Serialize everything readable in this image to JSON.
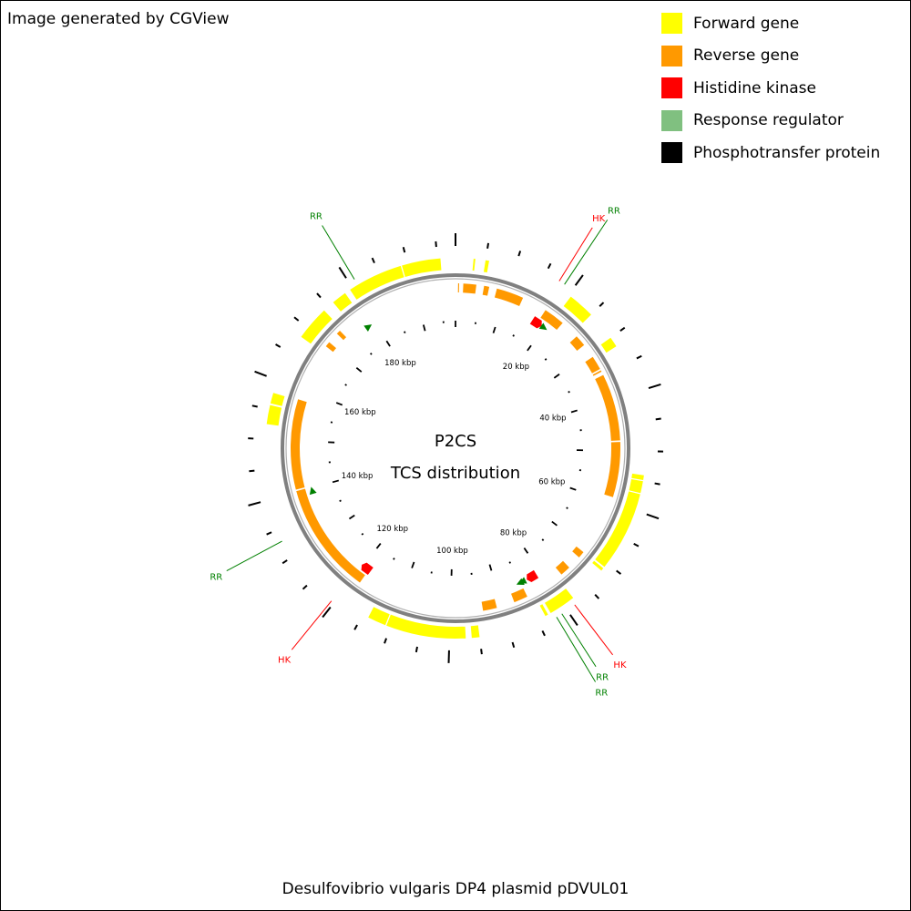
{
  "credit": "Image generated by CGView",
  "caption": "Desulfovibrio vulgaris DP4 plasmid pDVUL01",
  "center_title": "P2CS",
  "center_subtitle": "TCS distribution",
  "legend": [
    {
      "label": "Forward gene",
      "color": "#ffff00"
    },
    {
      "label": "Reverse gene",
      "color": "#ff9900"
    },
    {
      "label": "Histidine kinase",
      "color": "#ff0000"
    },
    {
      "label": "Response regulator",
      "color": "#80c080"
    },
    {
      "label": "Phosphotransfer protein",
      "color": "#000000"
    }
  ],
  "colors": {
    "forward": "#ffff00",
    "reverse": "#ff9900",
    "backbone": "#808080",
    "hk": "#ff0000",
    "rr": "#008000",
    "hk_label": "#ff0000",
    "rr_label": "#008000"
  },
  "genome": {
    "length_kbp": 198,
    "scale_labels": [
      "20 kbp",
      "40 kbp",
      "60 kbp",
      "80 kbp",
      "100 kbp",
      "120 kbp",
      "140 kbp",
      "160 kbp",
      "180 kbp"
    ],
    "forward_genes_kbp": [
      [
        3,
        3.3
      ],
      [
        5,
        5.6
      ],
      [
        20.5,
        25
      ],
      [
        30,
        31.7
      ],
      [
        54,
        54.8
      ],
      [
        55,
        57
      ],
      [
        57.2,
        70.7
      ],
      [
        71,
        71.5
      ],
      [
        78,
        82.5
      ],
      [
        83,
        83.5
      ],
      [
        95,
        96.3
      ],
      [
        97.3,
        110.7
      ],
      [
        110.9,
        114
      ],
      [
        152.5,
        155.7
      ],
      [
        156,
        157.8
      ],
      [
        168.2,
        174
      ],
      [
        176,
        178.5
      ],
      [
        179.5,
        188.8
      ],
      [
        189,
        195.5
      ]
    ],
    "reverse_genes_kbp": [
      [
        0.5,
        0.7
      ],
      [
        1.5,
        4
      ],
      [
        5.5,
        6.5
      ],
      [
        8,
        13.3
      ],
      [
        18.2,
        22.3
      ],
      [
        26,
        28.2
      ],
      [
        31,
        33.7
      ],
      [
        34,
        34.3
      ],
      [
        35,
        48
      ],
      [
        48.3,
        59
      ],
      [
        71,
        72.3
      ],
      [
        75,
        77
      ],
      [
        84.8,
        87.5
      ],
      [
        91,
        93.7
      ],
      [
        118.5,
        140.2
      ],
      [
        140.5,
        158
      ],
      [
        169.5,
        170.5
      ],
      [
        172.7,
        173.5
      ]
    ],
    "hk_kbp": [
      18,
      82,
      119
    ],
    "rr_kbp": [
      20,
      84.4,
      85,
      139.5,
      178.5
    ],
    "callouts": [
      {
        "label": "HK",
        "kind": "hk",
        "kbp": 17.5,
        "offset": 0
      },
      {
        "label": "RR",
        "kind": "rr",
        "kbp": 18.5,
        "offset": 16
      },
      {
        "label": "HK",
        "kind": "hk",
        "kbp": 78.5,
        "offset": 0
      },
      {
        "label": "RR",
        "kind": "rr",
        "kbp": 81,
        "offset": 0
      },
      {
        "label": "RR",
        "kind": "rr",
        "kbp": 82,
        "offset": 14
      },
      {
        "label": "HK",
        "kind": "hk",
        "kbp": 120.5,
        "offset": 0
      },
      {
        "label": "RR",
        "kind": "rr",
        "kbp": 133,
        "offset": 0
      },
      {
        "label": "RR",
        "kind": "rr",
        "kbp": 181,
        "offset": 0
      }
    ]
  }
}
